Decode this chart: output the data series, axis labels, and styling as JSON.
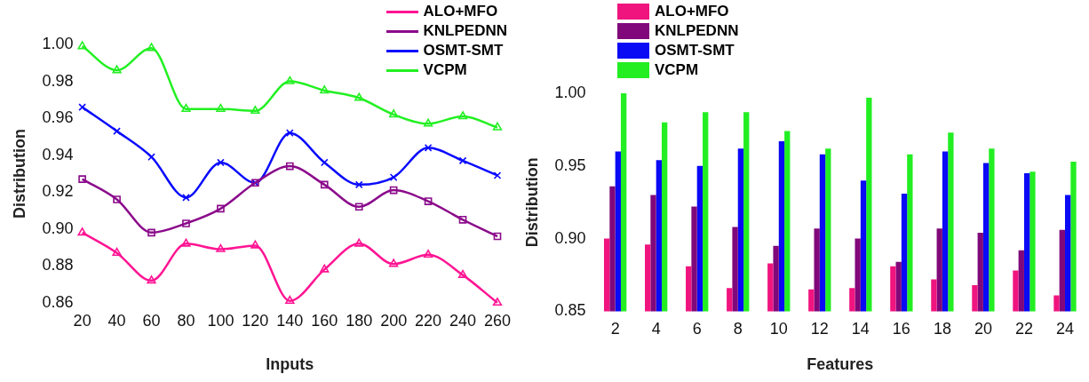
{
  "chart_data": [
    {
      "type": "line",
      "xlabel": "Inputs",
      "ylabel": "Distribution",
      "legend": "top right",
      "grid": false,
      "x": [
        20,
        40,
        60,
        80,
        100,
        120,
        140,
        160,
        180,
        200,
        220,
        240,
        260
      ],
      "xlim": [
        20,
        260
      ],
      "xticks": [
        20,
        40,
        60,
        80,
        100,
        120,
        140,
        160,
        180,
        200,
        220,
        240,
        260
      ],
      "ylim": [
        0.86,
        1.0
      ],
      "yticks": [
        {
          "value": 0.86,
          "label": "0.86"
        },
        {
          "value": 0.88,
          "label": "0.88"
        },
        {
          "value": 0.9,
          "label": "0.90"
        },
        {
          "value": 0.92,
          "label": "0.92"
        },
        {
          "value": 0.94,
          "label": "0.94"
        },
        {
          "value": 0.96,
          "label": "0.96"
        },
        {
          "value": 0.98,
          "label": "0.98"
        },
        {
          "value": 1.0,
          "label": "1.00"
        }
      ],
      "series": [
        {
          "name": "ALO+MFO",
          "color": "#ff1493",
          "marker": "triangle",
          "values": [
            0.898,
            0.887,
            0.872,
            0.892,
            0.889,
            0.891,
            0.861,
            0.878,
            0.892,
            0.881,
            0.886,
            0.875,
            0.86
          ]
        },
        {
          "name": "KNLPEDNN",
          "color": "#8b0a8b",
          "marker": "square",
          "values": [
            0.927,
            0.916,
            0.898,
            0.903,
            0.911,
            0.925,
            0.934,
            0.924,
            0.912,
            0.921,
            0.915,
            0.905,
            0.896
          ]
        },
        {
          "name": "OSMT-SMT",
          "color": "#0a0aff",
          "marker": "cross",
          "values": [
            0.966,
            0.953,
            0.939,
            0.917,
            0.936,
            0.925,
            0.952,
            0.936,
            0.924,
            0.928,
            0.944,
            0.937,
            0.929
          ]
        },
        {
          "name": "VCPM",
          "color": "#22f022",
          "marker": "triangle",
          "values": [
            0.999,
            0.986,
            0.998,
            0.965,
            0.965,
            0.964,
            0.98,
            0.975,
            0.971,
            0.962,
            0.957,
            0.961,
            0.955
          ]
        }
      ]
    },
    {
      "type": "bar",
      "xlabel": "Features",
      "ylabel": "Distribution",
      "legend": "top left",
      "grid": false,
      "categories": [
        "2",
        "4",
        "6",
        "8",
        "10",
        "12",
        "14",
        "16",
        "18",
        "20",
        "22",
        "24"
      ],
      "ylim": [
        0.85,
        1.0
      ],
      "yticks": [
        {
          "value": 0.85,
          "label": "0.85"
        },
        {
          "value": 0.9,
          "label": "0.90"
        },
        {
          "value": 0.95,
          "label": "0.95"
        },
        {
          "value": 1.0,
          "label": "1.00"
        }
      ],
      "series": [
        {
          "name": "ALO+MFO",
          "color": "#f0147f",
          "values": [
            0.9,
            0.896,
            0.881,
            0.866,
            0.883,
            0.865,
            0.866,
            0.881,
            0.872,
            0.868,
            0.878,
            0.861
          ]
        },
        {
          "name": "KNLPEDNN",
          "color": "#80087a",
          "values": [
            0.936,
            0.93,
            0.922,
            0.908,
            0.895,
            0.907,
            0.9,
            0.884,
            0.907,
            0.904,
            0.892,
            0.906
          ]
        },
        {
          "name": "OSMT-SMT",
          "color": "#0a0af5",
          "values": [
            0.96,
            0.954,
            0.95,
            0.962,
            0.967,
            0.958,
            0.94,
            0.931,
            0.96,
            0.952,
            0.945,
            0.93
          ]
        },
        {
          "name": "VCPM",
          "color": "#22ee22",
          "values": [
            1.0,
            0.98,
            0.987,
            0.987,
            0.974,
            0.962,
            0.997,
            0.958,
            0.973,
            0.962,
            0.946,
            0.953
          ]
        }
      ]
    }
  ]
}
